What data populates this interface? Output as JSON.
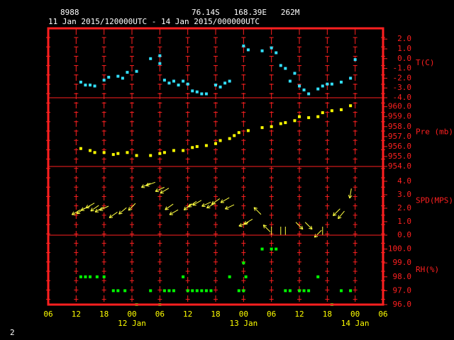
{
  "header": {
    "station": "8988",
    "location": "76.14S   168.39E   262M",
    "period": "11 Jan 2015/120000UTC - 14 Jan 2015/000000UTC",
    "page": "2"
  },
  "x_axis": {
    "xlim": [
      6,
      78
    ],
    "xticks": [
      {
        "value": 6,
        "label": "06"
      },
      {
        "value": 12,
        "label": "12"
      },
      {
        "value": 18,
        "label": "18"
      },
      {
        "value": 24,
        "label": "00"
      },
      {
        "value": 30,
        "label": "06"
      },
      {
        "value": 36,
        "label": "12"
      },
      {
        "value": 42,
        "label": "18"
      },
      {
        "value": 48,
        "label": "00"
      },
      {
        "value": 54,
        "label": "06"
      },
      {
        "value": 60,
        "label": "12"
      },
      {
        "value": 66,
        "label": "18"
      },
      {
        "value": 72,
        "label": "00"
      },
      {
        "value": 78,
        "label": "06"
      }
    ],
    "day_labels": [
      {
        "value": 24,
        "label": "12 Jan"
      },
      {
        "value": 48,
        "label": "13 Jan"
      },
      {
        "value": 72,
        "label": "14 Jan"
      }
    ]
  },
  "chart_data": [
    {
      "type": "scatter",
      "ylabel": "T(C)",
      "color": "#33e0ff",
      "ylim": [
        -4,
        3.1
      ],
      "yticks": [
        {
          "value": 2,
          "label": "2.0"
        },
        {
          "value": 1,
          "label": "1.0"
        },
        {
          "value": 0,
          "label": "0.0"
        },
        {
          "value": -1,
          "label": "-1.0"
        },
        {
          "value": -2,
          "label": "-2.0"
        },
        {
          "value": -3,
          "label": "-3.0"
        },
        {
          "value": -4,
          "label": "-4.0"
        }
      ],
      "x": [
        13,
        14,
        15,
        16,
        18,
        19,
        21,
        22,
        23,
        25,
        28,
        30,
        30,
        31,
        32,
        33,
        34,
        35,
        36,
        37,
        38,
        39,
        40,
        42,
        43,
        44,
        45,
        48,
        49,
        52,
        54,
        55,
        56,
        57,
        58,
        59,
        60,
        61,
        62,
        64,
        65,
        66,
        67,
        69,
        71,
        72
      ],
      "values": [
        -2.4,
        -2.7,
        -2.7,
        -2.8,
        -2.2,
        -1.9,
        -1.8,
        -2.0,
        -1.4,
        -1.3,
        0.0,
        0.3,
        -0.5,
        -2.2,
        -2.5,
        -2.3,
        -2.7,
        -2.3,
        -2.6,
        -3.3,
        -3.4,
        -3.6,
        -3.6,
        -2.7,
        -2.9,
        -2.5,
        -2.3,
        1.3,
        0.9,
        0.8,
        1.1,
        0.6,
        -0.7,
        -1.0,
        -2.3,
        -1.5,
        -2.8,
        -3.2,
        -3.6,
        -3.1,
        -2.8,
        -2.6,
        -2.6,
        -2.4,
        -2.0,
        -0.1
      ]
    },
    {
      "type": "scatter",
      "ylabel": "Pre (mb)",
      "color": "#ffff00",
      "ylim": [
        954,
        960.9
      ],
      "yticks": [
        {
          "value": 960,
          "label": "960.0"
        },
        {
          "value": 959,
          "label": "959.0"
        },
        {
          "value": 958,
          "label": "958.0"
        },
        {
          "value": 957,
          "label": "957.0"
        },
        {
          "value": 956,
          "label": "956.0"
        },
        {
          "value": 955,
          "label": "955.0"
        },
        {
          "value": 954,
          "label": "954.0"
        }
      ],
      "x": [
        13,
        15,
        16,
        18,
        20,
        21,
        23,
        25,
        28,
        30,
        31,
        33,
        35,
        37,
        38,
        40,
        42,
        43,
        45,
        46,
        47,
        49,
        52,
        54,
        56,
        57,
        59,
        60,
        62,
        64,
        65,
        67,
        69,
        71
      ],
      "values": [
        955.8,
        955.6,
        955.4,
        955.4,
        955.2,
        955.3,
        955.4,
        955.1,
        955.1,
        955.3,
        955.4,
        955.6,
        955.6,
        955.9,
        956.0,
        956.1,
        956.3,
        956.6,
        956.8,
        957.1,
        957.4,
        957.6,
        957.9,
        958.0,
        958.3,
        958.4,
        958.6,
        959.0,
        958.9,
        959.0,
        959.4,
        959.6,
        959.7,
        960.1
      ]
    },
    {
      "type": "quiver",
      "ylabel": "SPD(MPS)",
      "color": "#ffff40",
      "ylim": [
        0,
        5.1
      ],
      "yticks": [
        {
          "value": 4,
          "label": "4.0"
        },
        {
          "value": 3,
          "label": "3.0"
        },
        {
          "value": 2,
          "label": "2.0"
        },
        {
          "value": 1,
          "label": "1.0"
        },
        {
          "value": 0,
          "label": "0.0"
        }
      ],
      "x": [
        12,
        13,
        14,
        15,
        16,
        17,
        18,
        20,
        22,
        24,
        27,
        28,
        30,
        31,
        32,
        33,
        36,
        37,
        38,
        40,
        41,
        42,
        44,
        45,
        48,
        49,
        51,
        53,
        54,
        56,
        57,
        60,
        62,
        64,
        65,
        68,
        69,
        71
      ],
      "values": [
        1.7,
        1.8,
        2.0,
        2.2,
        2.0,
        1.9,
        2.0,
        1.5,
        1.8,
        2.1,
        3.7,
        3.8,
        3.4,
        3.3,
        2.1,
        1.7,
        2.1,
        2.3,
        2.4,
        2.3,
        2.2,
        2.5,
        2.6,
        2.1,
        0.8,
        1.0,
        1.8,
        0.5,
        0,
        0,
        0,
        0.7,
        0.7,
        0.1,
        0,
        1.7,
        1.5,
        3.1
      ],
      "directions": [
        240,
        235,
        245,
        240,
        235,
        240,
        245,
        235,
        230,
        225,
        245,
        250,
        245,
        240,
        235,
        240,
        230,
        235,
        240,
        245,
        240,
        235,
        240,
        245,
        250,
        240,
        315,
        315,
        0,
        0,
        0,
        135,
        135,
        225,
        0,
        225,
        220,
        190
      ]
    },
    {
      "type": "scatter",
      "ylabel": "RH(%)",
      "color": "#00ff00",
      "ylim": [
        96,
        101
      ],
      "yticks": [
        {
          "value": 100,
          "label": "100.0"
        },
        {
          "value": 99,
          "label": "99.0"
        },
        {
          "value": 98,
          "label": "98.0"
        },
        {
          "value": 97,
          "label": "97.0"
        },
        {
          "value": 96,
          "label": "96.0"
        }
      ],
      "x": [
        13,
        14,
        15,
        16.5,
        18,
        20,
        21,
        22.5,
        25,
        28,
        30,
        31,
        32,
        33,
        35,
        36,
        37,
        38,
        39,
        40,
        41,
        45,
        47,
        48,
        48,
        48.5,
        52,
        54,
        55,
        57,
        58,
        60,
        61,
        62,
        64,
        67,
        69,
        71
      ],
      "values": [
        98,
        98,
        98,
        98,
        98,
        97,
        97,
        97,
        96,
        97,
        96,
        97,
        97,
        97,
        98,
        97,
        97,
        97,
        97,
        97,
        97,
        98,
        97,
        97,
        99,
        98,
        100,
        100,
        100,
        97,
        97,
        97,
        97,
        97,
        98,
        96,
        97,
        97
      ]
    }
  ]
}
